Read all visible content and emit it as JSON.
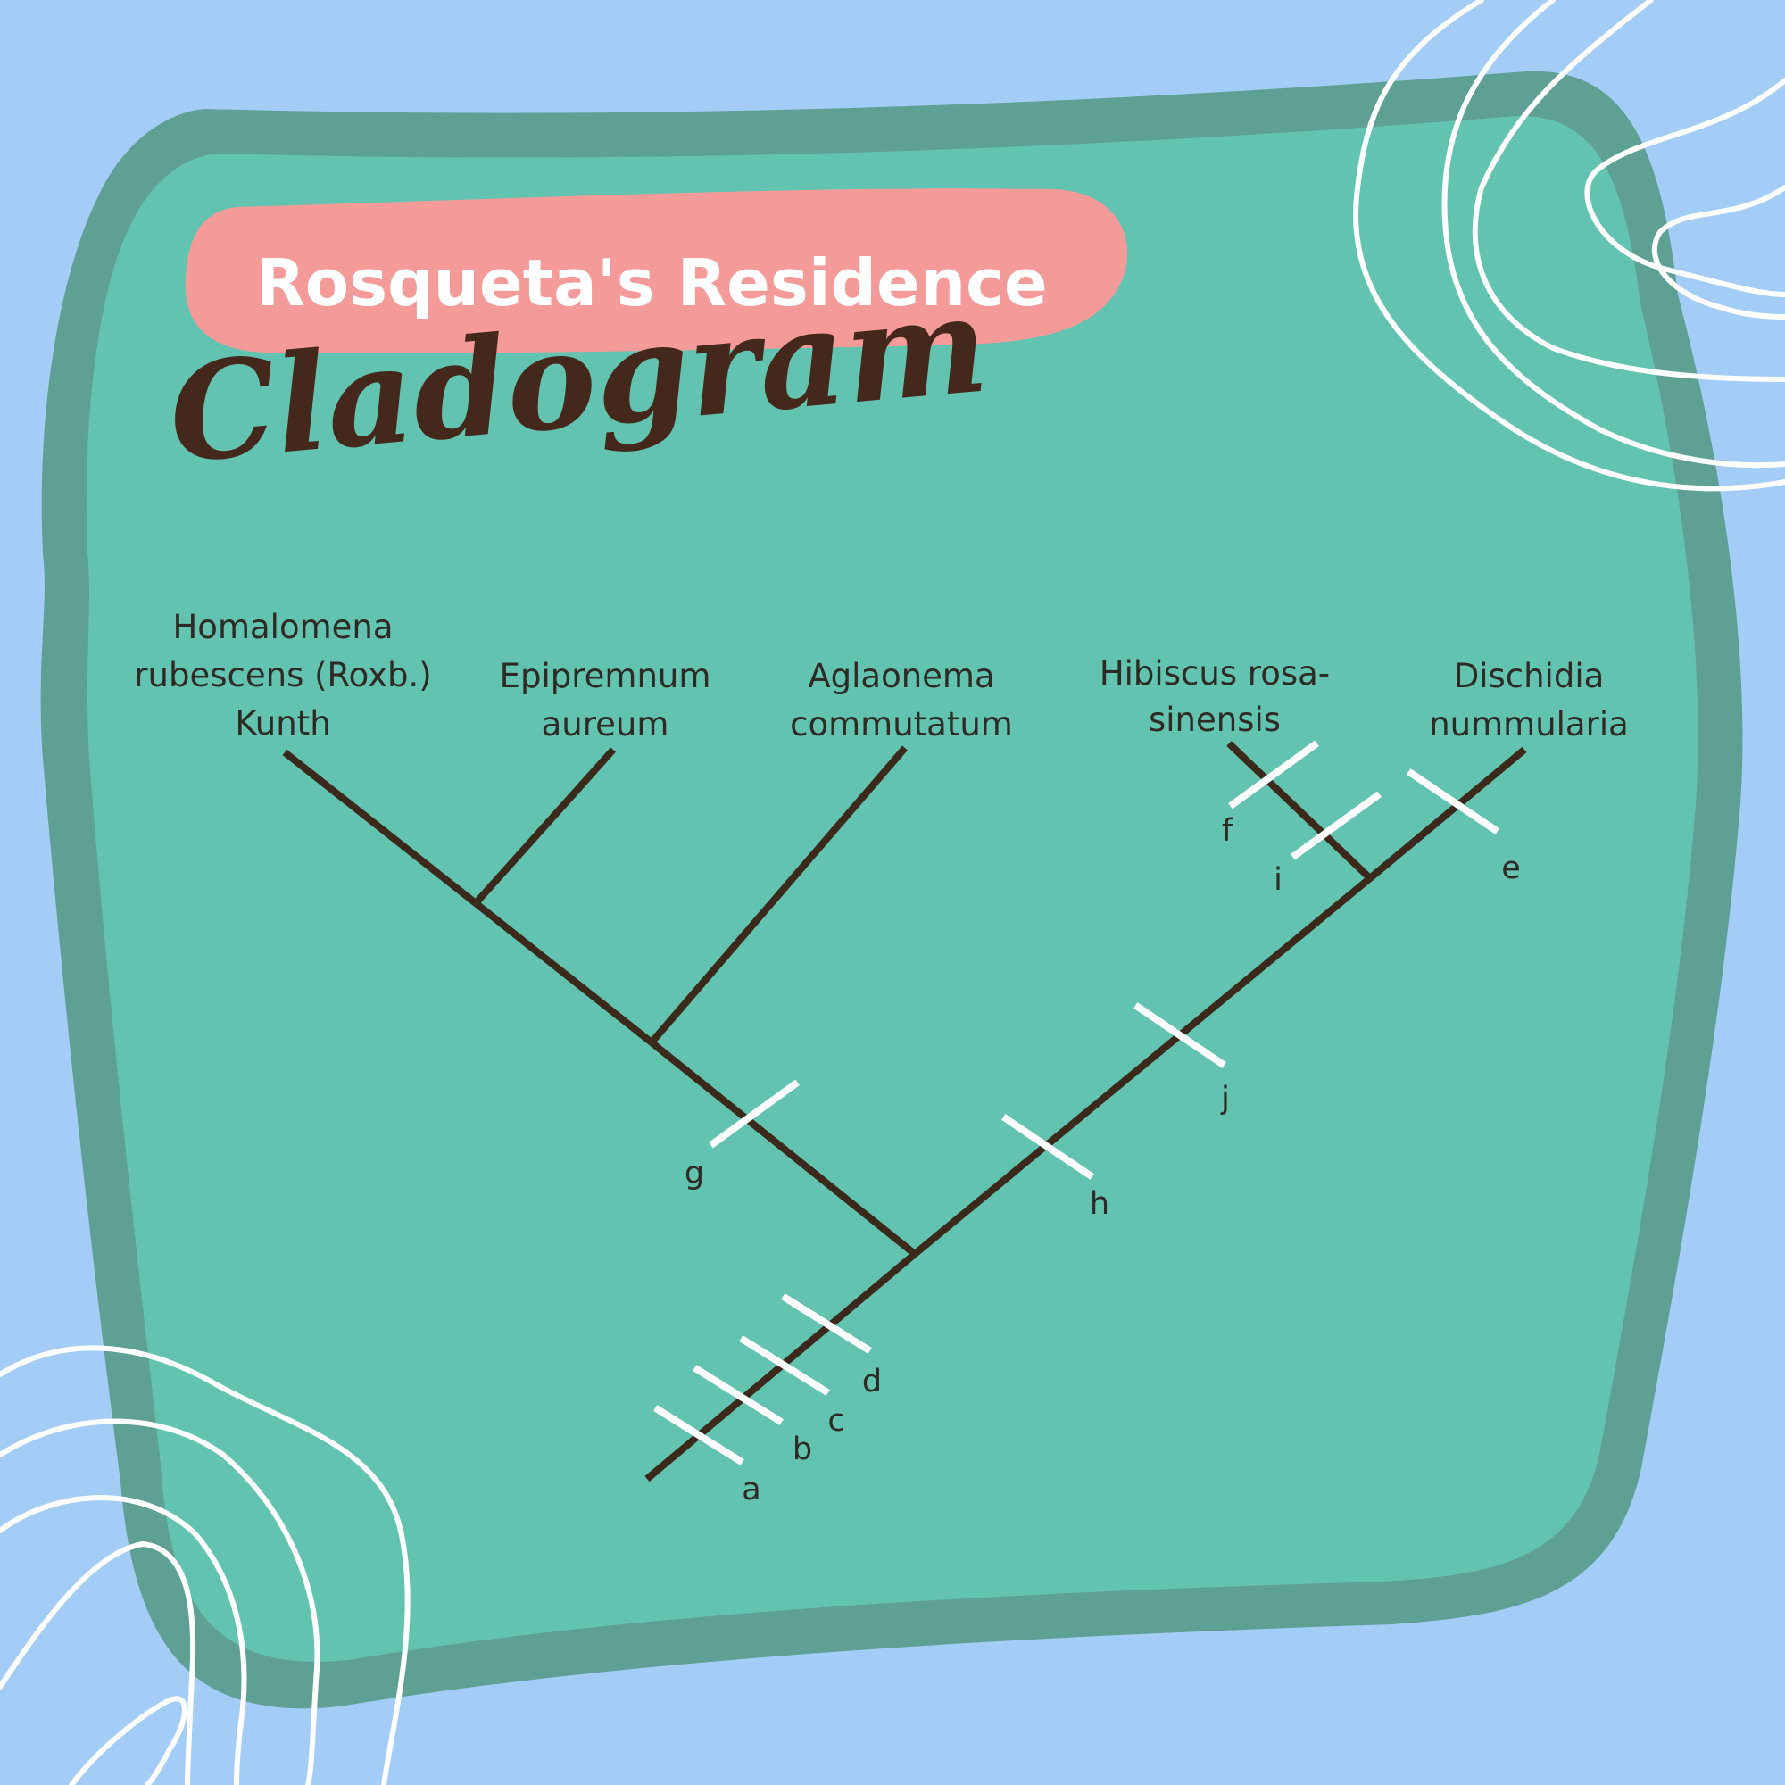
{
  "colors": {
    "background": "#a3cdf6",
    "card_border": "#5fa095",
    "card_fill": "#63c3b1",
    "title_banner": "#f49b99",
    "title_text": "#ffffff",
    "subtitle_text": "#45281c",
    "branch": "#3b2a1c",
    "trait_tick": "#ffffff",
    "swirl": "#ffffff"
  },
  "header": {
    "title": "Rosqueta's Residence",
    "subtitle": "Cladogram"
  },
  "taxa": [
    {
      "lines": [
        "Homalomena",
        "rubescens (Roxb.)",
        "Kunth"
      ]
    },
    {
      "lines": [
        "Epipremnum",
        "aureum"
      ]
    },
    {
      "lines": [
        "Aglaonema",
        "commutatum"
      ]
    },
    {
      "lines": [
        "Hibiscus rosa-",
        "sinensis"
      ]
    },
    {
      "lines": [
        "Dischidia",
        "nummularia"
      ]
    }
  ],
  "traits": [
    "a",
    "b",
    "c",
    "d",
    "e",
    "f",
    "g",
    "h",
    "i",
    "j"
  ]
}
